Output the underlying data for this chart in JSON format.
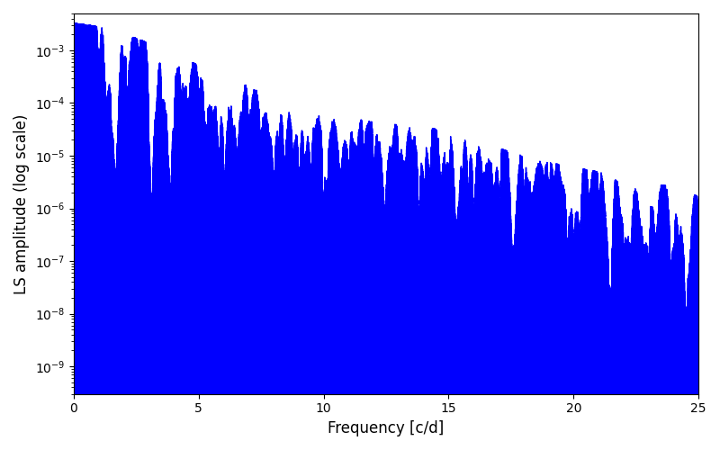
{
  "xlabel": "Frequency [c/d]",
  "ylabel": "LS amplitude (log scale)",
  "xlim": [
    0,
    25
  ],
  "ylim": [
    3e-10,
    0.005
  ],
  "line_color": "#0000ff",
  "background_color": "#ffffff",
  "figsize": [
    8.0,
    5.0
  ],
  "dpi": 100,
  "seed": 42,
  "n_points": 80000,
  "freq_max": 25.0
}
